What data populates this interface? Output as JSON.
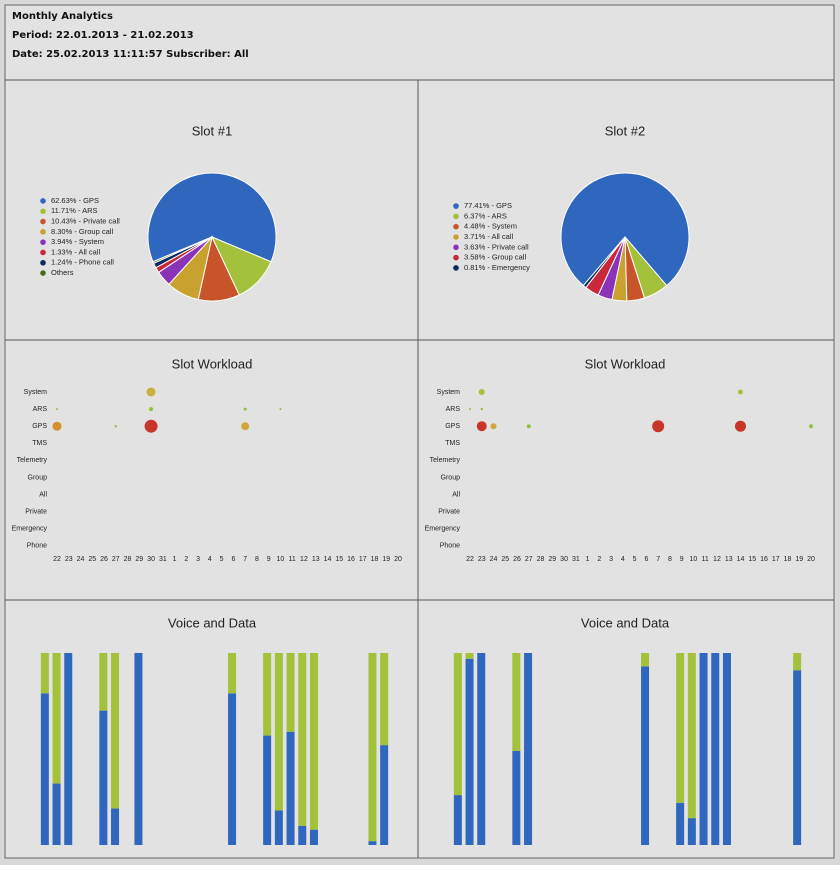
{
  "header": {
    "title": "Monthly Analytics",
    "period": "Period: 22.01.2013 - 21.02.2013",
    "date": "Date: 25.02.2013 11:11:57 Subscriber: All"
  },
  "chart_data": [
    {
      "type": "pie",
      "title": "Slot #1",
      "categories": [
        "62.63% - GPS",
        "11.71% - ARS",
        "10.43% - Private call",
        "8.30% - Group call",
        "3.94% - System",
        "1.33% - All call",
        "1.24% - Phone call",
        "Others"
      ],
      "values": [
        62.63,
        11.71,
        10.43,
        8.3,
        3.94,
        1.33,
        1.24,
        0.42
      ],
      "colors": [
        "#2f67bf",
        "#a3c13a",
        "#c8552a",
        "#c9a12f",
        "#8a33b8",
        "#c8283a",
        "#0b2b5e",
        "#4a6b18"
      ]
    },
    {
      "type": "pie",
      "title": "Slot #2",
      "categories": [
        "77.41% - GPS",
        "6.37% - ARS",
        "4.48% - System",
        "3.71% - All call",
        "3.63% - Private call",
        "3.58% - Group call",
        "0.81% - Emergency"
      ],
      "values": [
        77.41,
        6.37,
        4.48,
        3.71,
        3.63,
        3.58,
        0.81
      ],
      "colors": [
        "#2f67bf",
        "#a3c13a",
        "#c8552a",
        "#c9a12f",
        "#8a33b8",
        "#c8283a",
        "#0b2b5e"
      ]
    },
    {
      "type": "bubble",
      "title": "Slot Workload",
      "x_categories": [
        "22",
        "23",
        "24",
        "25",
        "26",
        "27",
        "28",
        "29",
        "30",
        "31",
        "1",
        "2",
        "3",
        "4",
        "5",
        "6",
        "7",
        "8",
        "9",
        "10",
        "11",
        "12",
        "13",
        "14",
        "15",
        "16",
        "17",
        "18",
        "19",
        "20"
      ],
      "y_categories": [
        "System",
        "ARS",
        "GPS",
        "TMS",
        "Telemetry",
        "Group",
        "All",
        "Private",
        "Emergency",
        "Phone"
      ],
      "points": [
        {
          "x": "30",
          "y": "System",
          "size": 4.5,
          "color": "#c9b03a"
        },
        {
          "x": "22",
          "y": "ARS",
          "size": 1,
          "color": "#8fc13a"
        },
        {
          "x": "30",
          "y": "ARS",
          "size": 2,
          "color": "#8fc13a"
        },
        {
          "x": "7",
          "y": "ARS",
          "size": 1.5,
          "color": "#8fc13a"
        },
        {
          "x": "10",
          "y": "ARS",
          "size": 1,
          "color": "#8fc13a"
        },
        {
          "x": "22",
          "y": "GPS",
          "size": 4.5,
          "color": "#d4902a"
        },
        {
          "x": "27",
          "y": "GPS",
          "size": 1.2,
          "color": "#8fc13a"
        },
        {
          "x": "30",
          "y": "GPS",
          "size": 6.5,
          "color": "#c8352a"
        },
        {
          "x": "7",
          "y": "GPS",
          "size": 4,
          "color": "#d4a53a"
        }
      ]
    },
    {
      "type": "bubble",
      "title": "Slot Workload",
      "x_categories": [
        "22",
        "23",
        "24",
        "25",
        "26",
        "27",
        "28",
        "29",
        "30",
        "31",
        "1",
        "2",
        "3",
        "4",
        "5",
        "6",
        "7",
        "8",
        "9",
        "10",
        "11",
        "12",
        "13",
        "14",
        "15",
        "16",
        "17",
        "18",
        "19",
        "20"
      ],
      "y_categories": [
        "System",
        "ARS",
        "GPS",
        "TMS",
        "Telemetry",
        "Group",
        "All",
        "Private",
        "Emergency",
        "Phone"
      ],
      "points": [
        {
          "x": "23",
          "y": "System",
          "size": 3,
          "color": "#a3c13a"
        },
        {
          "x": "14",
          "y": "System",
          "size": 2.5,
          "color": "#a3c13a"
        },
        {
          "x": "22",
          "y": "ARS",
          "size": 1,
          "color": "#8fc13a"
        },
        {
          "x": "23",
          "y": "ARS",
          "size": 1.2,
          "color": "#8fc13a"
        },
        {
          "x": "23",
          "y": "GPS",
          "size": 5,
          "color": "#c8352a"
        },
        {
          "x": "24",
          "y": "GPS",
          "size": 3,
          "color": "#d4a53a"
        },
        {
          "x": "27",
          "y": "GPS",
          "size": 2,
          "color": "#8fc13a"
        },
        {
          "x": "7",
          "y": "GPS",
          "size": 6,
          "color": "#c8352a"
        },
        {
          "x": "14",
          "y": "GPS",
          "size": 5.5,
          "color": "#c8352a"
        },
        {
          "x": "20",
          "y": "GPS",
          "size": 2,
          "color": "#8fc13a"
        }
      ]
    },
    {
      "type": "stacked_bar",
      "title": "Voice and Data",
      "ylim": [
        0,
        100
      ],
      "series": [
        {
          "color": "#2f67bf",
          "values": [
            79,
            32,
            100,
            null,
            null,
            70,
            19,
            null,
            100,
            null,
            null,
            null,
            null,
            null,
            null,
            null,
            79,
            null,
            null,
            57,
            18,
            59,
            10,
            8,
            null,
            null,
            null,
            null,
            2,
            52
          ]
        },
        {
          "color": "#a3c13a",
          "values": [
            21,
            68,
            0,
            null,
            null,
            30,
            81,
            null,
            0,
            null,
            null,
            null,
            null,
            null,
            null,
            null,
            21,
            null,
            null,
            43,
            82,
            41,
            90,
            92,
            null,
            null,
            null,
            null,
            98,
            48
          ]
        }
      ]
    },
    {
      "type": "stacked_bar",
      "title": "Voice and Data",
      "ylim": [
        0,
        100
      ],
      "series": [
        {
          "color": "#2f67bf",
          "values": [
            26,
            97,
            100,
            null,
            null,
            49,
            100,
            null,
            null,
            null,
            null,
            null,
            null,
            null,
            null,
            null,
            93,
            null,
            null,
            22,
            14,
            100,
            100,
            100,
            null,
            null,
            null,
            null,
            null,
            91
          ]
        },
        {
          "color": "#a3c13a",
          "values": [
            74,
            3,
            0,
            null,
            null,
            51,
            0,
            null,
            null,
            null,
            null,
            null,
            null,
            null,
            null,
            null,
            7,
            null,
            null,
            78,
            86,
            0,
            0,
            0,
            null,
            null,
            null,
            null,
            null,
            9
          ]
        }
      ]
    }
  ]
}
